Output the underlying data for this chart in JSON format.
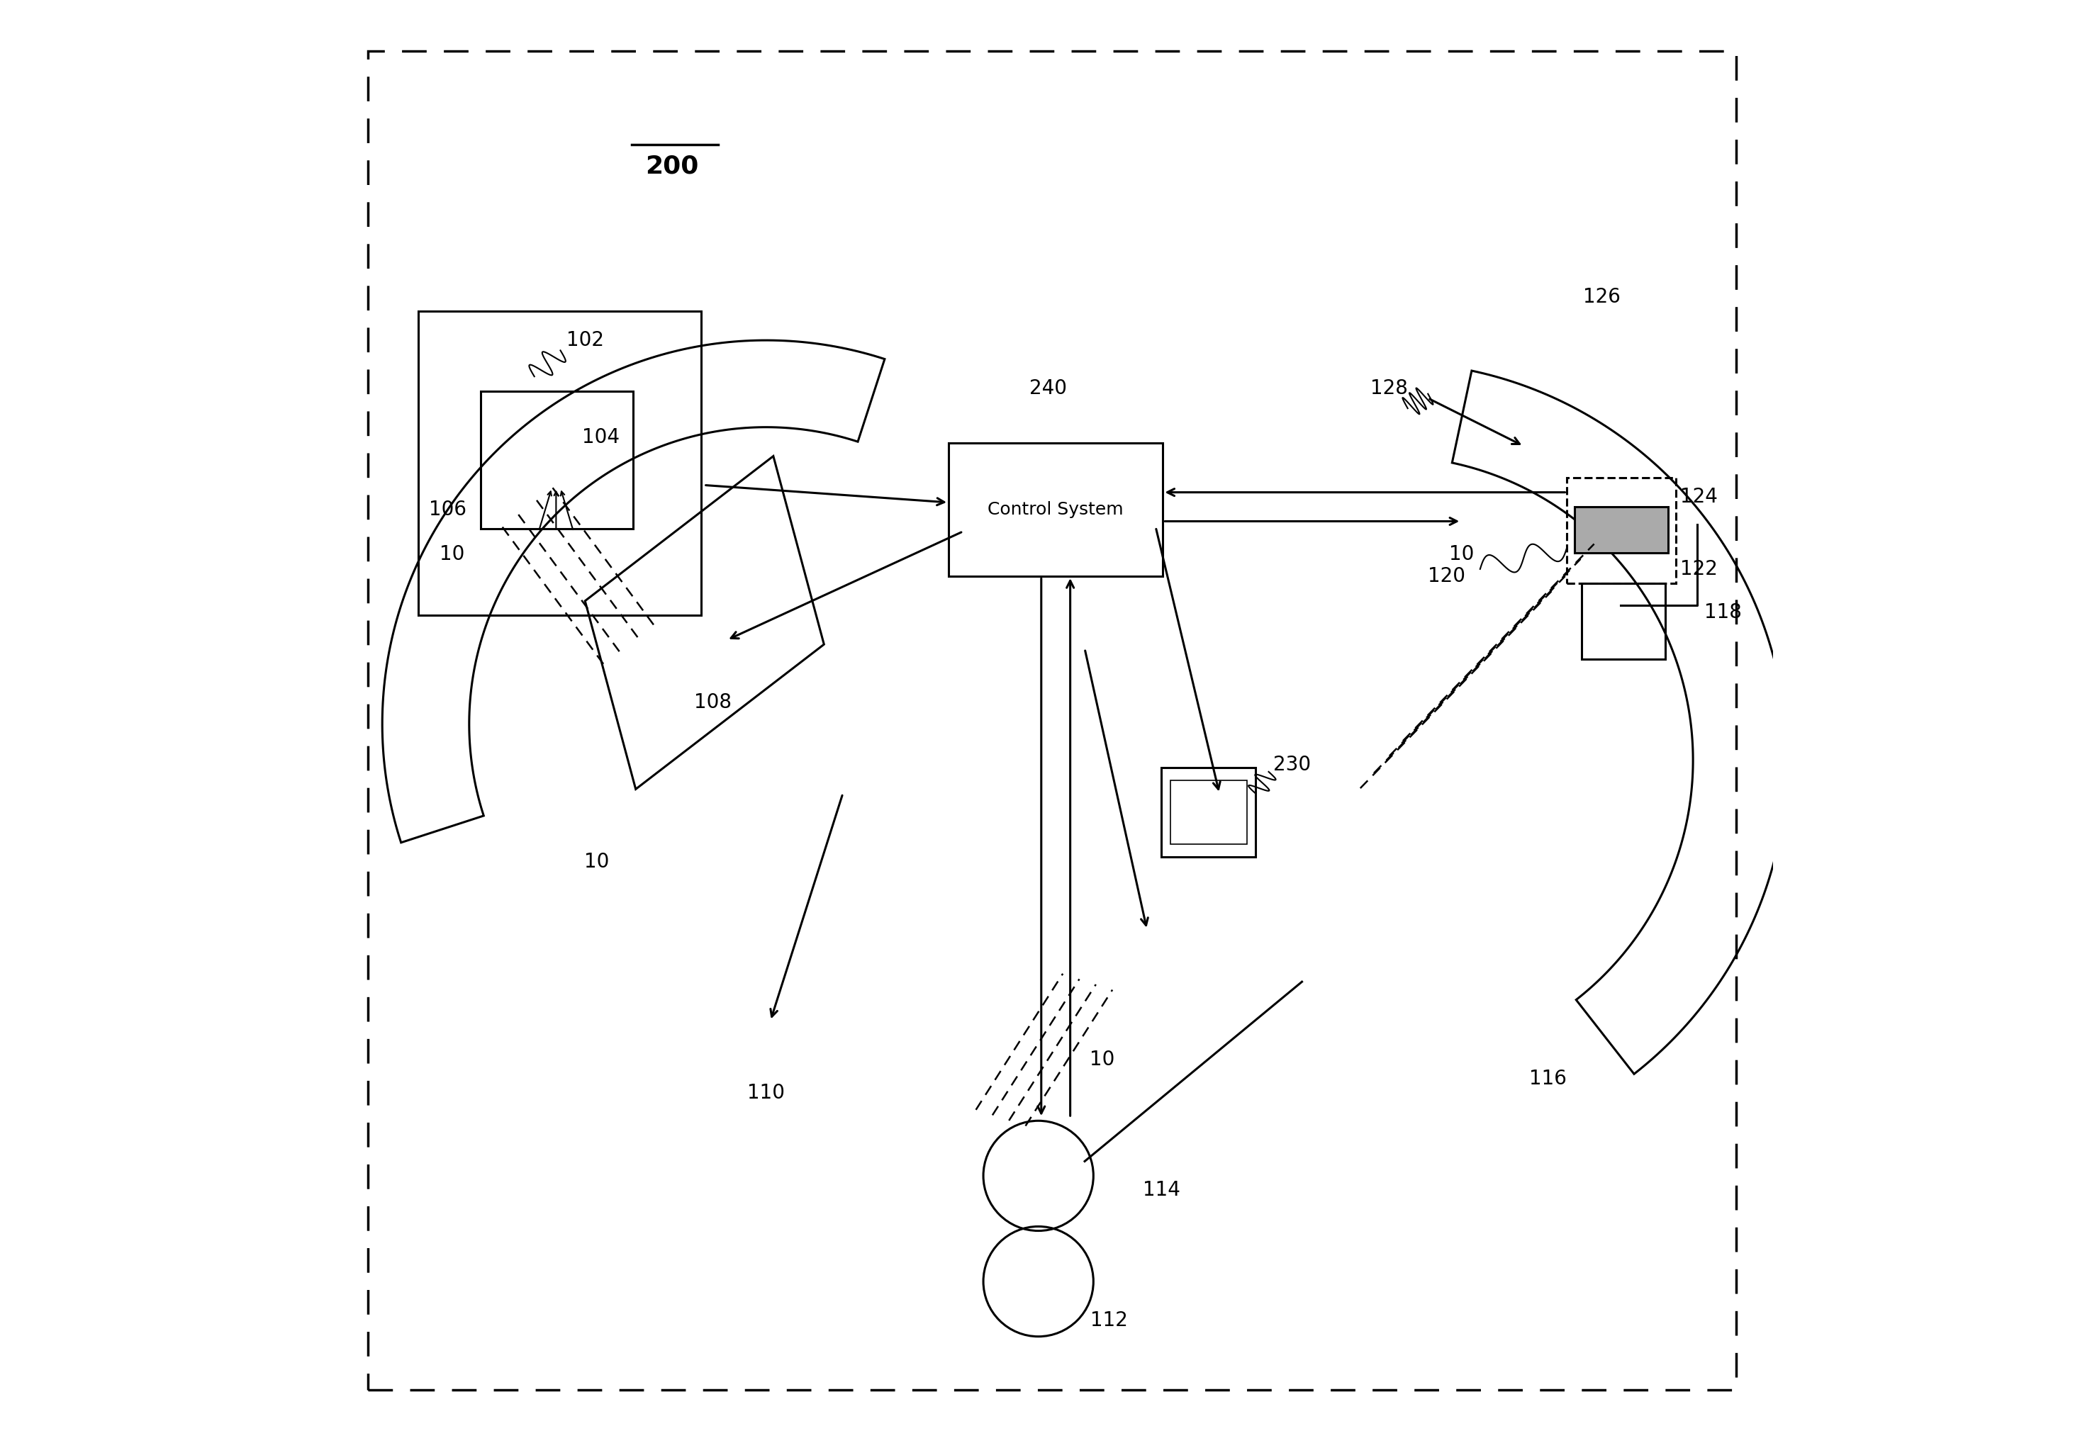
{
  "bg": "#ffffff",
  "lw": 2.2,
  "fs": 20,
  "fs_large": 26,
  "control_text": "Control System",
  "label_200": "200",
  "label_240": "240"
}
